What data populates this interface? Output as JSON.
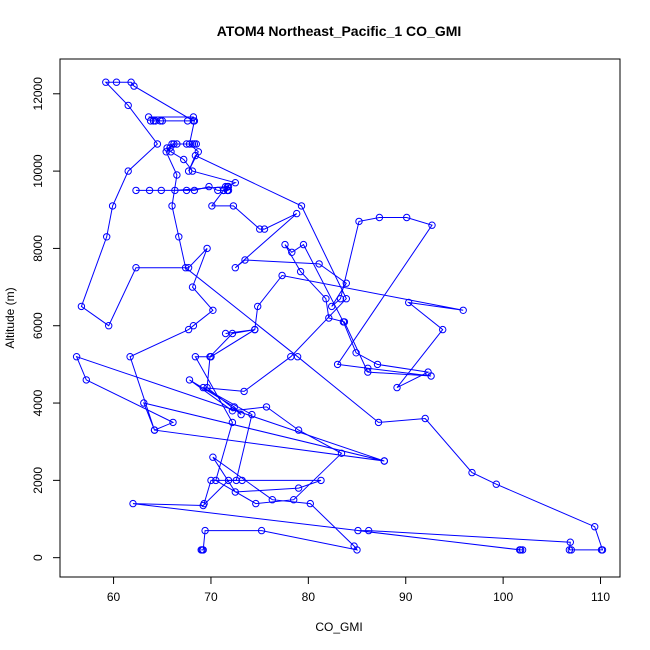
{
  "chart_data": {
    "type": "line",
    "title": "ATOM4 Northeast_Pacific_1 CO_GMI",
    "xlabel": "CO_GMI",
    "ylabel": "Altitude (m)",
    "xlim": [
      54.5,
      112
    ],
    "ylim": [
      -500,
      12900
    ],
    "xticks": [
      60,
      70,
      80,
      90,
      100,
      110
    ],
    "yticks": [
      0,
      2000,
      4000,
      6000,
      8000,
      10000,
      12000
    ],
    "grid": false,
    "legend": "none",
    "series": [
      {
        "color": "#0000ff",
        "marker": "open-circle",
        "points": [
          [
            69,
            200
          ],
          [
            69.1,
            200
          ],
          [
            69.2,
            200
          ],
          [
            69.4,
            700
          ],
          [
            75.2,
            700
          ],
          [
            85,
            200
          ],
          [
            84.7,
            300
          ],
          [
            80.2,
            1400
          ],
          [
            76.3,
            1500
          ],
          [
            70.2,
            2600
          ],
          [
            72.5,
            1700
          ],
          [
            79,
            1800
          ],
          [
            81.3,
            2000
          ],
          [
            73.2,
            2000
          ],
          [
            71.8,
            2000
          ],
          [
            69.2,
            1350
          ],
          [
            62,
            1400
          ],
          [
            101.7,
            200
          ],
          [
            102,
            200
          ],
          [
            101.8,
            200
          ],
          [
            85.1,
            700
          ],
          [
            86.2,
            700
          ],
          [
            106.9,
            400
          ],
          [
            106.8,
            200
          ],
          [
            107,
            200
          ],
          [
            110.1,
            200
          ],
          [
            110.2,
            200
          ],
          [
            109.4,
            800
          ],
          [
            99.3,
            1900
          ],
          [
            96.8,
            2200
          ],
          [
            92,
            3600
          ],
          [
            87.2,
            3500
          ],
          [
            78.9,
            5200
          ],
          [
            67.4,
            7500
          ],
          [
            66.7,
            8300
          ],
          [
            66,
            9100
          ],
          [
            66.5,
            9900
          ],
          [
            65.4,
            10500
          ],
          [
            66,
            10700
          ],
          [
            68.1,
            10700
          ],
          [
            68.3,
            10700
          ],
          [
            68.5,
            10700
          ],
          [
            67.5,
            10700
          ],
          [
            66.5,
            10700
          ],
          [
            66.2,
            10700
          ],
          [
            65.8,
            10600
          ],
          [
            65.5,
            10600
          ],
          [
            65.9,
            10500
          ],
          [
            67.2,
            10300
          ],
          [
            68.1,
            10000
          ],
          [
            72.5,
            9700
          ],
          [
            71.5,
            9600
          ],
          [
            71.7,
            9500
          ],
          [
            71.8,
            9500
          ],
          [
            71.3,
            9500
          ],
          [
            70.7,
            9500
          ],
          [
            69.8,
            9600
          ],
          [
            68.3,
            9500
          ],
          [
            67.5,
            9500
          ],
          [
            64.9,
            9500
          ],
          [
            63.7,
            9500
          ],
          [
            62.3,
            9500
          ],
          [
            66.3,
            9500
          ],
          [
            71.8,
            9600
          ],
          [
            71.7,
            9500
          ],
          [
            71.7,
            9600
          ],
          [
            71.3,
            9500
          ],
          [
            70.1,
            9100
          ],
          [
            72.3,
            9100
          ],
          [
            75,
            8500
          ],
          [
            75.5,
            8500
          ],
          [
            78.8,
            8900
          ],
          [
            72.5,
            7500
          ],
          [
            73.5,
            7700
          ],
          [
            81.1,
            7600
          ],
          [
            83.9,
            7100
          ],
          [
            82.4,
            6500
          ],
          [
            83.3,
            6700
          ],
          [
            85.2,
            8700
          ],
          [
            87.3,
            8800
          ],
          [
            90.1,
            8800
          ],
          [
            92.7,
            8600
          ],
          [
            83,
            5000
          ],
          [
            86.1,
            4900
          ],
          [
            92.6,
            4700
          ],
          [
            86.1,
            4800
          ],
          [
            83.7,
            6100
          ],
          [
            82.1,
            6200
          ],
          [
            81.8,
            6700
          ],
          [
            79.2,
            7400
          ],
          [
            77.6,
            8100
          ],
          [
            78.3,
            7900
          ],
          [
            79.5,
            8100
          ],
          [
            83.6,
            6100
          ],
          [
            84.9,
            5300
          ],
          [
            87.1,
            5000
          ],
          [
            92.3,
            4800
          ],
          [
            89.1,
            4400
          ],
          [
            93.8,
            5900
          ],
          [
            90.3,
            6600
          ],
          [
            95.9,
            6400
          ],
          [
            77.3,
            7300
          ],
          [
            74.8,
            6500
          ],
          [
            74.5,
            5900
          ],
          [
            72.2,
            5800
          ],
          [
            69.9,
            5200
          ],
          [
            69.6,
            4400
          ],
          [
            73.1,
            3700
          ],
          [
            72.4,
            3900
          ],
          [
            67.8,
            4600
          ],
          [
            72.2,
            3800
          ],
          [
            75.7,
            3900
          ],
          [
            79,
            3300
          ],
          [
            83.4,
            2700
          ],
          [
            78.5,
            1500
          ],
          [
            74.6,
            1400
          ],
          [
            70.5,
            2000
          ],
          [
            72.2,
            3500
          ],
          [
            68.4,
            5200
          ],
          [
            70,
            5200
          ],
          [
            74.5,
            5900
          ],
          [
            71.5,
            5800
          ]
        ]
      },
      {
        "color": "#0000ff",
        "marker": "open-circle",
        "points": [
          [
            87.8,
            2500
          ],
          [
            63.1,
            4000
          ],
          [
            64.2,
            3300
          ],
          [
            66.1,
            3500
          ],
          [
            57.2,
            4600
          ],
          [
            56.2,
            5200
          ],
          [
            87.8,
            2500
          ],
          [
            64.2,
            3300
          ],
          [
            61.7,
            5200
          ],
          [
            67.7,
            5900
          ],
          [
            68.2,
            6000
          ],
          [
            70.2,
            6400
          ],
          [
            68.1,
            7000
          ],
          [
            69.6,
            8000
          ],
          [
            67.7,
            7500
          ],
          [
            62.3,
            7500
          ],
          [
            59.5,
            6000
          ],
          [
            56.7,
            6500
          ],
          [
            59.3,
            8300
          ],
          [
            59.9,
            9100
          ],
          [
            61.5,
            10000
          ],
          [
            64.5,
            10700
          ],
          [
            61.5,
            11700
          ],
          [
            59.2,
            12300
          ],
          [
            60.3,
            12300
          ],
          [
            61.8,
            12300
          ],
          [
            62.1,
            12200
          ],
          [
            68.2,
            11300
          ],
          [
            67.6,
            11300
          ],
          [
            65,
            11300
          ],
          [
            64.1,
            11300
          ],
          [
            63.8,
            11300
          ],
          [
            64.3,
            11300
          ],
          [
            64.8,
            11300
          ],
          [
            63.6,
            11400
          ],
          [
            68.2,
            11400
          ],
          [
            68.3,
            11300
          ],
          [
            67.8,
            10700
          ],
          [
            68.7,
            10500
          ],
          [
            67.7,
            10000
          ],
          [
            68.4,
            10400
          ],
          [
            79.3,
            9100
          ],
          [
            83.9,
            6700
          ],
          [
            78.2,
            5200
          ],
          [
            73.4,
            4300
          ],
          [
            69.2,
            4400
          ],
          [
            74.2,
            3700
          ],
          [
            72.6,
            2000
          ],
          [
            70,
            2000
          ],
          [
            69.3,
            1400
          ]
        ]
      }
    ]
  }
}
